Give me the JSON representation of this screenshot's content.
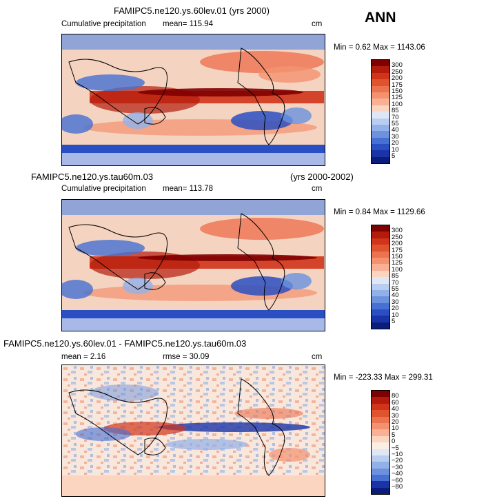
{
  "season_label": "ANN",
  "panels": [
    {
      "title_left": "",
      "title_center": "FAMIPC5.ne120.ys.60lev.01 (yrs 2000)",
      "title_right": "",
      "subtitle": "Cumulative precipitation",
      "stat1": "mean=  115.94",
      "stat2": "",
      "units": "cm",
      "minmax": "Min =   0.62  Max = 1143.06"
    },
    {
      "title_left": "FAMIPC5.ne120.ys.tau60m.03",
      "title_center": "",
      "title_right": "(yrs 2000-2002)",
      "subtitle": "Cumulative precipitation",
      "stat1": "mean=  113.78",
      "stat2": "",
      "units": "cm",
      "minmax": "Min =   0.84  Max = 1129.66"
    },
    {
      "title_left": "FAMIPC5.ne120.ys.60lev.01 - FAMIPC5.ne120.ys.tau60m.03",
      "title_center": "",
      "title_right": "",
      "subtitle": "mean =    2.16",
      "stat1": "rmse =   30.09",
      "stat2": "",
      "units": "cm",
      "minmax": "Min = -223.33  Max = 299.31"
    }
  ],
  "colorbars": {
    "precip": {
      "labels": [
        "300",
        "250",
        "200",
        "175",
        "150",
        "125",
        "100",
        "85",
        "70",
        "55",
        "40",
        "30",
        "20",
        "10",
        "5"
      ],
      "colors": [
        "#7f0000",
        "#b31b0c",
        "#d0341b",
        "#e0532f",
        "#ec7350",
        "#f4926f",
        "#f8b195",
        "#fbd5bf",
        "#dfe7f7",
        "#b9cdf0",
        "#92b1e8",
        "#6c92de",
        "#4670d2",
        "#2a4fc2",
        "#1a34a8",
        "#0b1d7a"
      ]
    },
    "diff": {
      "labels": [
        "80",
        "60",
        "40",
        "30",
        "20",
        "10",
        "5",
        "0",
        "−5",
        "−10",
        "−20",
        "−30",
        "−40",
        "−60",
        "−80"
      ],
      "colors": [
        "#7f0000",
        "#b31b0c",
        "#d0341b",
        "#e0532f",
        "#ec7350",
        "#f4926f",
        "#f8b195",
        "#fbd5bf",
        "#fdeee4",
        "#dfe7f7",
        "#b9cdf0",
        "#92b1e8",
        "#6c92de",
        "#4670d2",
        "#1a34a8",
        "#0b1d7a"
      ]
    }
  },
  "chart_data": [
    {
      "type": "heatmap",
      "title": "FAMIPC5.ne120.ys.60lev.01 (yrs 2000)",
      "variable": "Cumulative precipitation",
      "units": "cm",
      "mean": 115.94,
      "min": 0.62,
      "max": 1143.06,
      "contour_levels": [
        5,
        10,
        20,
        30,
        40,
        55,
        70,
        85,
        100,
        125,
        150,
        175,
        200,
        250,
        300
      ]
    },
    {
      "type": "heatmap",
      "title": "FAMIPC5.ne120.ys.tau60m.03 (yrs 2000-2002)",
      "variable": "Cumulative precipitation",
      "units": "cm",
      "mean": 113.78,
      "min": 0.84,
      "max": 1129.66,
      "contour_levels": [
        5,
        10,
        20,
        30,
        40,
        55,
        70,
        85,
        100,
        125,
        150,
        175,
        200,
        250,
        300
      ]
    },
    {
      "type": "heatmap",
      "title": "FAMIPC5.ne120.ys.60lev.01 - FAMIPC5.ne120.ys.tau60m.03",
      "units": "cm",
      "mean": 2.16,
      "rmse": 30.09,
      "min": -223.33,
      "max": 299.31,
      "contour_levels": [
        -80,
        -60,
        -40,
        -30,
        -20,
        -10,
        -5,
        0,
        5,
        10,
        20,
        30,
        40,
        60,
        80
      ]
    }
  ]
}
